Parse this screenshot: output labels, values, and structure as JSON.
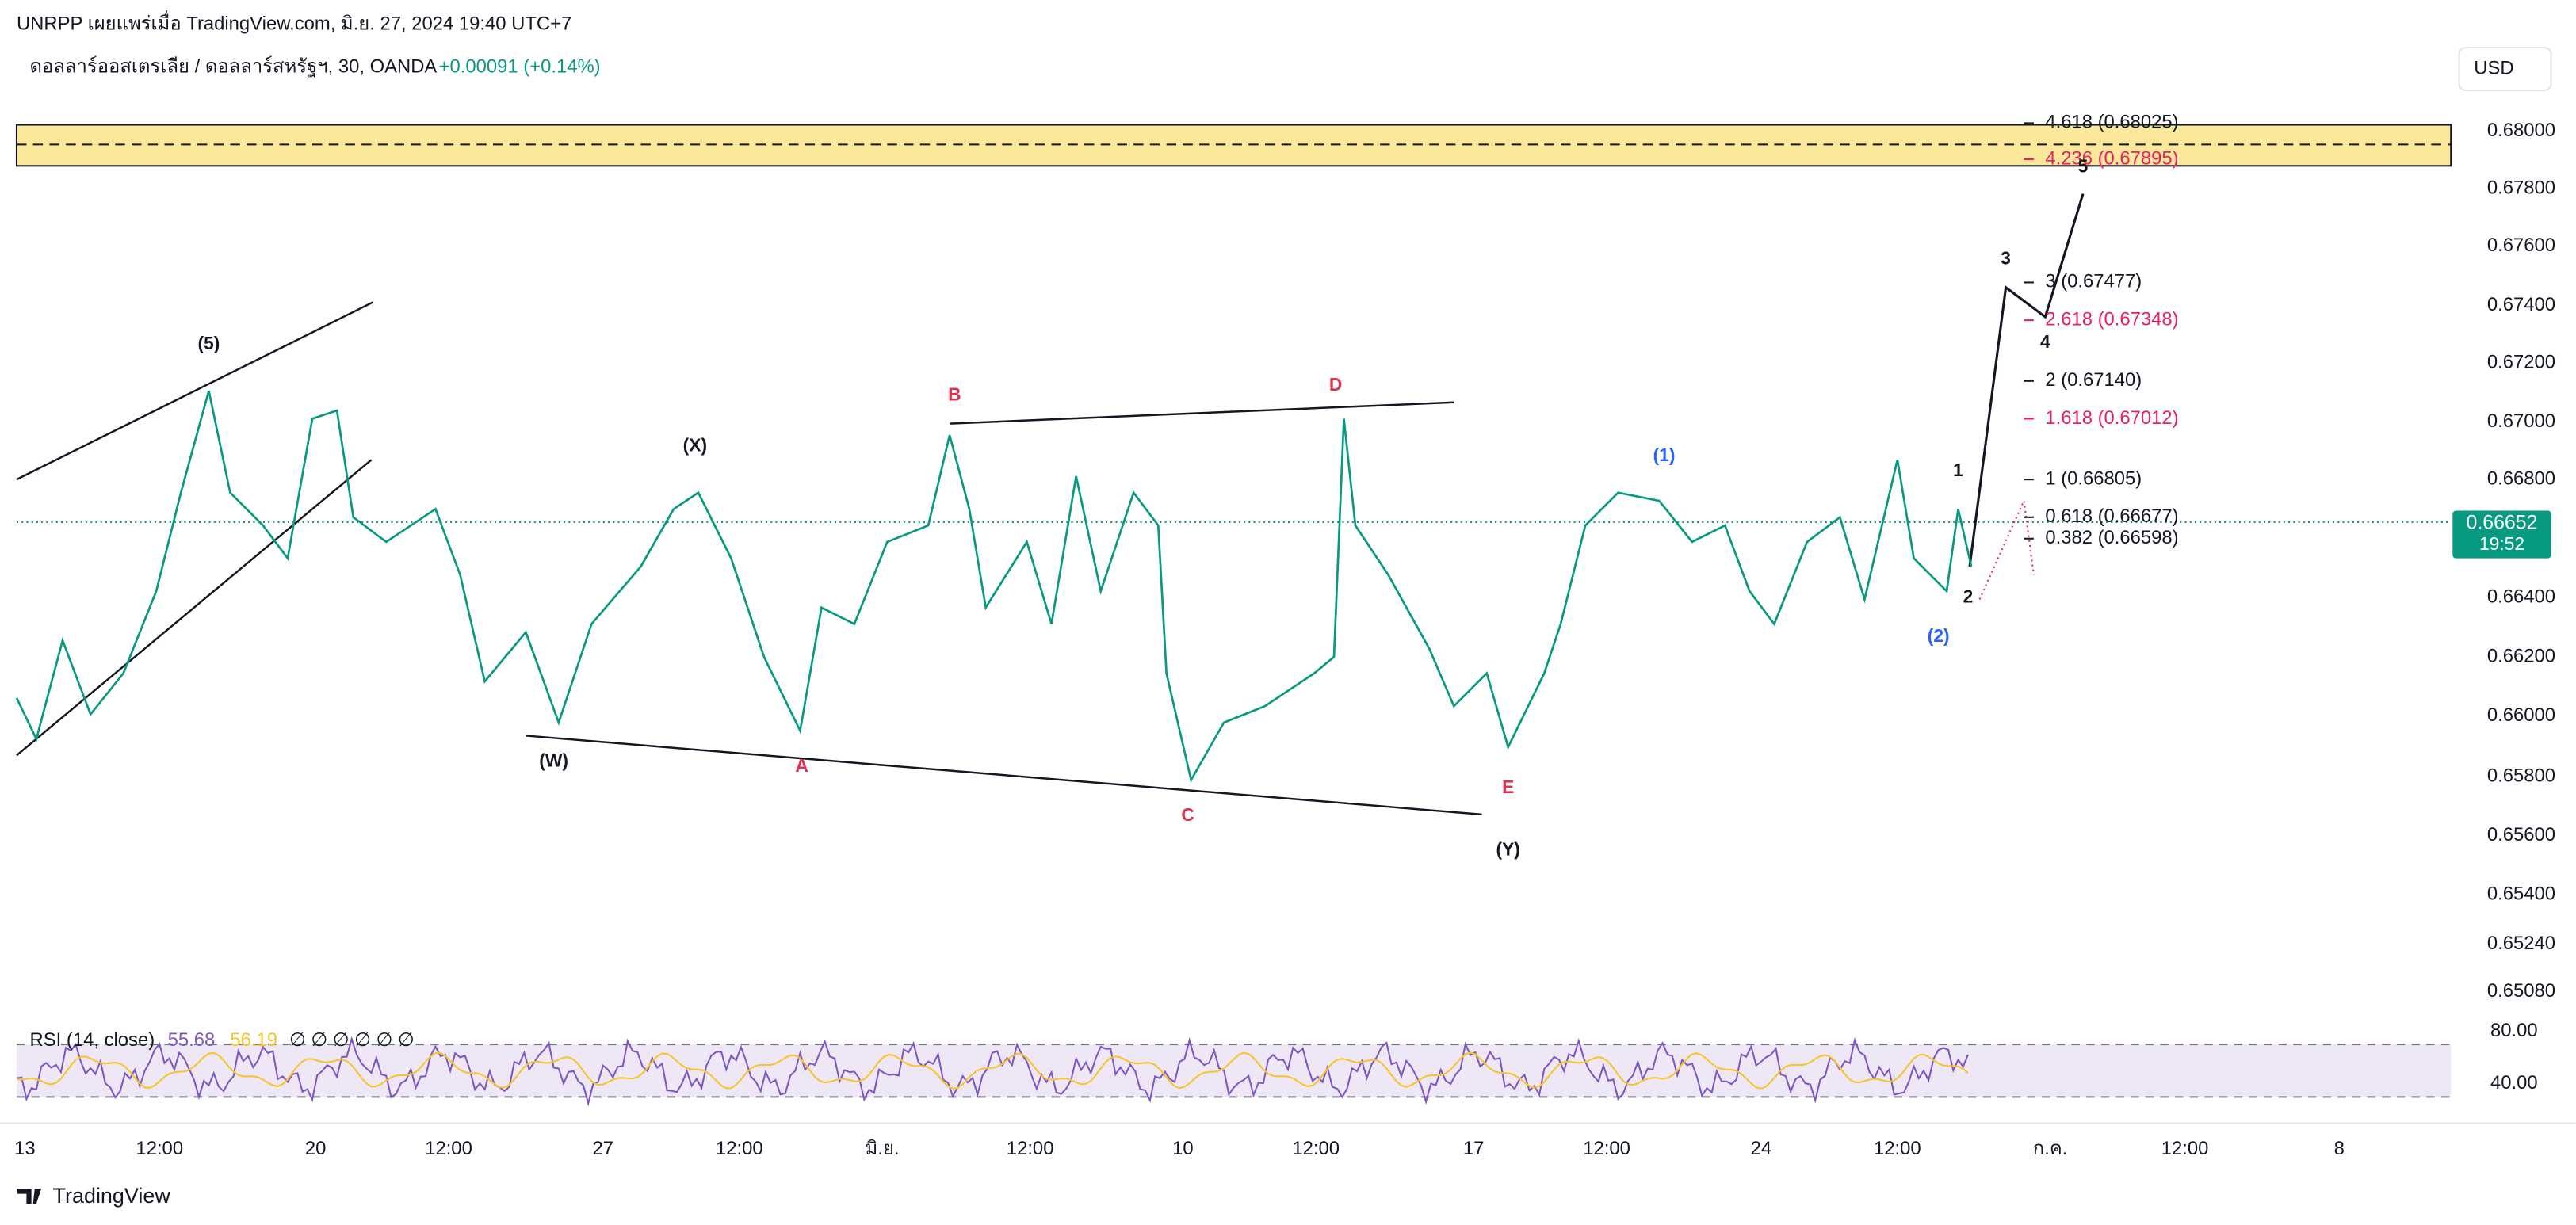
{
  "header": {
    "publisher": "UNRPP เผยแพร่เมื่อ TradingView.com, มิ.ย. 27, 2024 19:40 UTC+7",
    "symbol": "ดอลลาร์ออสเตรเลีย / ดอลลาร์สหรัฐฯ, 30, OANDA",
    "change": "+0.00091 (+0.14%)",
    "currency": "USD"
  },
  "price_axis": [
    "0.68000",
    "0.67800",
    "0.67600",
    "0.67400",
    "0.67200",
    "0.67000",
    "0.66800",
    "0.66400",
    "0.66200",
    "0.66000",
    "0.65800",
    "0.65600",
    "0.65400",
    "0.65240",
    "0.65080"
  ],
  "price_badge": {
    "price": "0.66652",
    "countdown": "19:52"
  },
  "fib_levels": [
    {
      "label": "4.618 (0.68025)",
      "color": "#131722"
    },
    {
      "label": "4.236 (0.67895)",
      "color": "#e91e63"
    },
    {
      "label": "3 (0.67477)",
      "color": "#131722"
    },
    {
      "label": "2.618 (0.67348)",
      "color": "#e91e63"
    },
    {
      "label": "2 (0.67140)",
      "color": "#131722"
    },
    {
      "label": "1.618 (0.67012)",
      "color": "#e91e63"
    },
    {
      "label": "1 (0.66805)",
      "color": "#131722"
    },
    {
      "label": "0.618 (0.66677)",
      "color": "#131722"
    },
    {
      "label": "0.382 (0.66598)",
      "color": "#131722"
    }
  ],
  "wave_labels": [
    {
      "label": "(5)",
      "color": "#131722"
    },
    {
      "label": "(X)",
      "color": "#131722"
    },
    {
      "label": "(W)",
      "color": "#131722"
    },
    {
      "label": "A",
      "color": "#e0304e"
    },
    {
      "label": "B",
      "color": "#e0304e"
    },
    {
      "label": "C",
      "color": "#e0304e"
    },
    {
      "label": "D",
      "color": "#e0304e"
    },
    {
      "label": "E",
      "color": "#e0304e"
    },
    {
      "label": "(Y)",
      "color": "#131722"
    },
    {
      "label": "(1)",
      "color": "#2962ff"
    },
    {
      "label": "(2)",
      "color": "#2962ff"
    },
    {
      "label": "1",
      "color": "#131722"
    },
    {
      "label": "2",
      "color": "#131722"
    },
    {
      "label": "3",
      "color": "#131722"
    },
    {
      "label": "4",
      "color": "#131722"
    },
    {
      "label": "5",
      "color": "#131722"
    }
  ],
  "rsi": {
    "title": "RSI (14, close)",
    "value": "55.68",
    "ma": "56.19",
    "extra": "∅ ∅ ∅ ∅ ∅ ∅",
    "axis": [
      "80.00",
      "40.00"
    ]
  },
  "time_axis": [
    "13",
    "12:00",
    "20",
    "12:00",
    "27",
    "12:00",
    "มิ.ย.",
    "12:00",
    "10",
    "12:00",
    "17",
    "12:00",
    "24",
    "12:00",
    "ก.ค.",
    "12:00",
    "8"
  ],
  "footer": "TradingView"
}
